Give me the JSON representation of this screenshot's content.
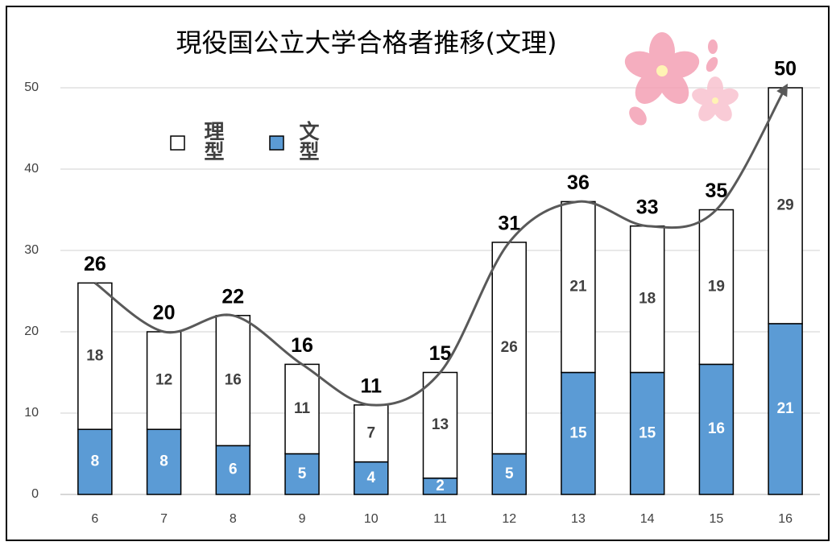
{
  "chart_data": {
    "type": "stacked_bar",
    "title": "現役国公立大学合格者推移(文理)",
    "categories": [
      "6",
      "7",
      "8",
      "9",
      "10",
      "11",
      "12",
      "13",
      "14",
      "15",
      "16"
    ],
    "series": [
      {
        "name": "文型",
        "color": "#5b9bd5",
        "values": [
          8,
          8,
          6,
          5,
          4,
          2,
          5,
          15,
          15,
          16,
          21
        ]
      },
      {
        "name": "理型",
        "color": "#ffffff",
        "values": [
          18,
          12,
          16,
          11,
          7,
          13,
          26,
          21,
          18,
          19,
          29
        ]
      }
    ],
    "totals": [
      26,
      20,
      22,
      16,
      11,
      15,
      31,
      36,
      33,
      35,
      50
    ],
    "ylim": [
      0,
      50
    ],
    "yticks": [
      0,
      10,
      20,
      30,
      40,
      50
    ],
    "grid": true
  }
}
